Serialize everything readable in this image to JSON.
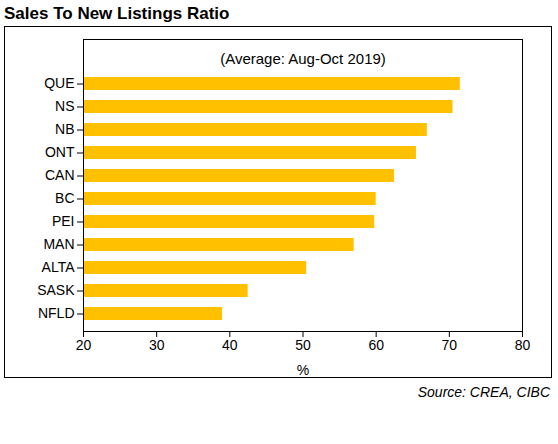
{
  "chart_data": {
    "type": "bar",
    "orientation": "horizontal",
    "title": "Sales To New Listings Ratio",
    "subtitle": "(Average: Aug-Oct 2019)",
    "x_label": "%",
    "source": "Source: CREA, CIBC",
    "categories": [
      "QUE",
      "NS",
      "NB",
      "ONT",
      "CAN",
      "BC",
      "PEI",
      "MAN",
      "ALTA",
      "SASK",
      "NFLD"
    ],
    "values": [
      71.5,
      70.5,
      67,
      65.5,
      62.5,
      60,
      59.8,
      57,
      50.5,
      42.5,
      39
    ],
    "color": "#FFC000",
    "xlim": [
      20,
      80
    ],
    "xticks": [
      20,
      30,
      40,
      50,
      60,
      70,
      80
    ],
    "grid": false
  }
}
